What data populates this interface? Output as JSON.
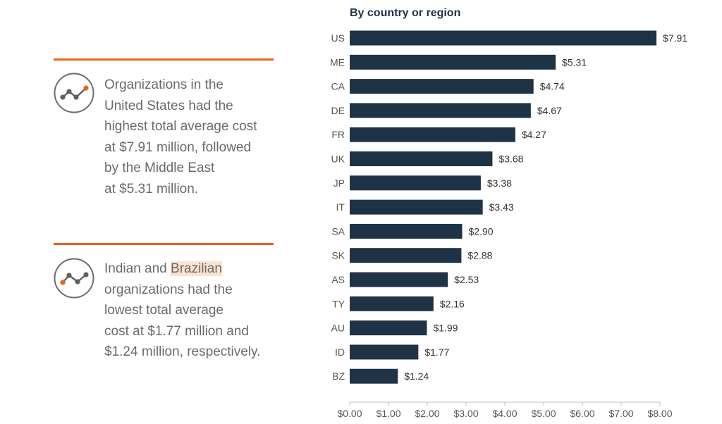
{
  "callouts": [
    {
      "text": "Organizations in the\nUnited States had the\nhighest total average cost\nat $7.91 million, followed\nby the Middle East\nat $5.31 million."
    },
    {
      "text_before": "Indian and ",
      "highlight": "Brazilian",
      "text_after": "\norganizations had the\nlowest total average\ncost at $1.77 million and\n$1.24 million, respectively."
    }
  ],
  "colors": {
    "bar": "#1f3347",
    "accent": "#e8631e",
    "icon_gray": "#5f5f5f",
    "text_gray": "#6a6a6a",
    "axis": "#bfbfbf"
  },
  "icons": [
    "trend-line-icon",
    "trend-line-icon"
  ],
  "chart_data": {
    "type": "bar",
    "orientation": "horizontal",
    "title": "By country or region",
    "categories": [
      "US",
      "ME",
      "CA",
      "DE",
      "FR",
      "UK",
      "JP",
      "IT",
      "SA",
      "SK",
      "AS",
      "TY",
      "AU",
      "ID",
      "BZ"
    ],
    "values": [
      7.91,
      5.31,
      4.74,
      4.67,
      4.27,
      3.68,
      3.38,
      3.43,
      2.9,
      2.88,
      2.53,
      2.16,
      1.99,
      1.77,
      1.24
    ],
    "value_labels": [
      "$7.91",
      "$5.31",
      "$4.74",
      "$4.67",
      "$4.27",
      "$3.68",
      "$3.38",
      "$3.43",
      "$2.90",
      "$2.88",
      "$2.53",
      "$2.16",
      "$1.99",
      "$1.77",
      "$1.24"
    ],
    "xticks": [
      "$0.00",
      "$1.00",
      "$2.00",
      "$3.00",
      "$4.00",
      "$5.00",
      "$6.00",
      "$7.00",
      "$8.00"
    ],
    "xlim": [
      0,
      8
    ],
    "xlabel": "",
    "ylabel": "",
    "grid": false,
    "legend": "none"
  }
}
